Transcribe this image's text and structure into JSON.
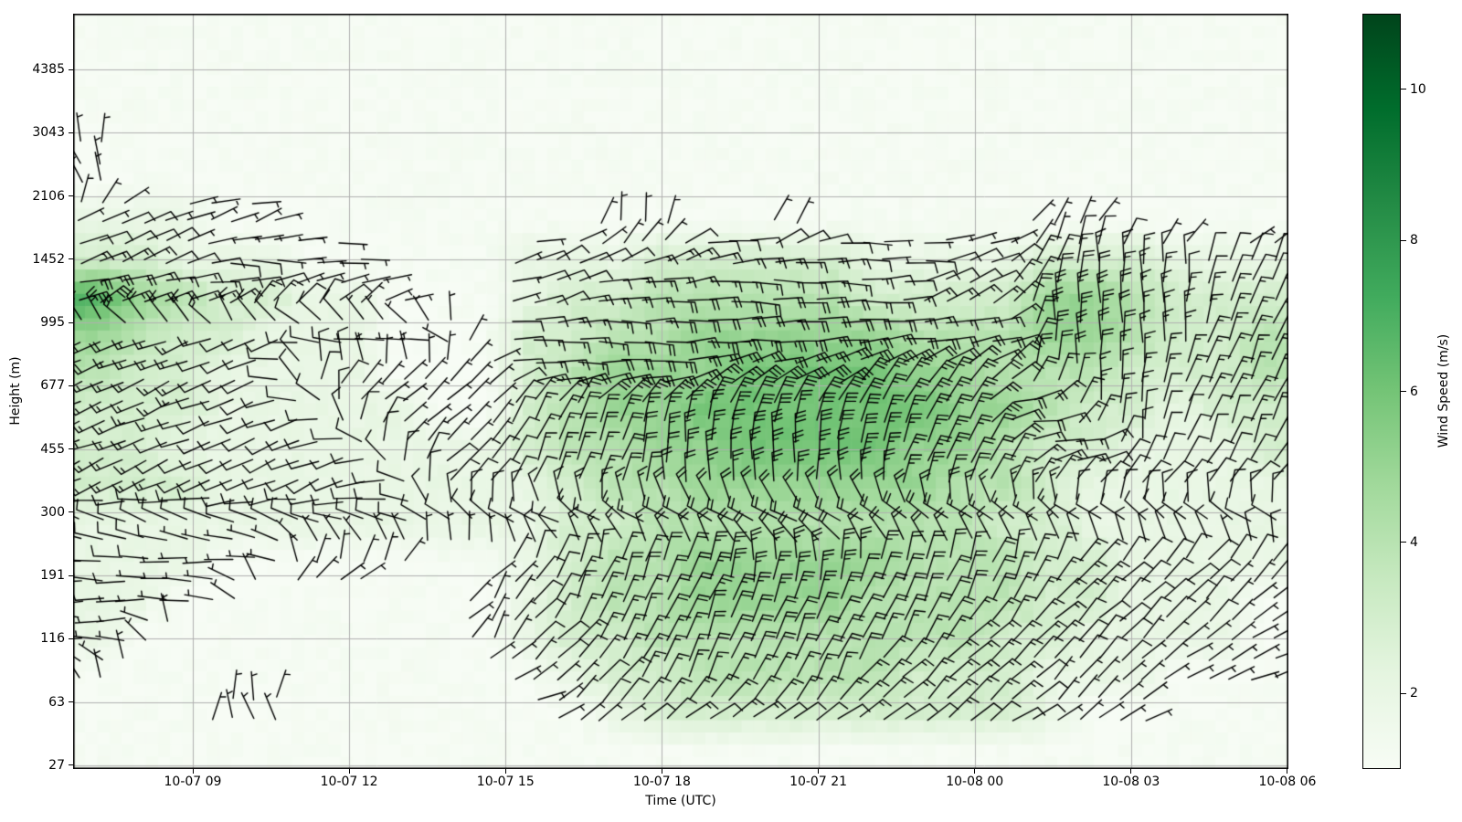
{
  "chart_data": {
    "type": "heatmap",
    "subtype": "time-height wind barbs over wind-speed color shading",
    "title": "",
    "x_axis": {
      "label": "Time (UTC)",
      "tick_labels": [
        "10-07 09",
        "10-07 12",
        "10-07 15",
        "10-07 18",
        "10-07 21",
        "10-08 00",
        "10-08 03",
        "10-08 06"
      ],
      "start_approx": "10-07 06:40",
      "end": "10-08 06:00",
      "grid": true
    },
    "y_axis": {
      "label": "Height (m)",
      "tick_labels": [
        "4385",
        "3043",
        "2106",
        "1452",
        "995",
        "677",
        "455",
        "300",
        "191",
        "116",
        "63",
        "27"
      ],
      "tick_values_m": [
        4385,
        3043,
        2106,
        1452,
        995,
        677,
        455,
        300,
        191,
        116,
        63,
        27
      ],
      "scale": "log-like, ticks evenly spaced top to bottom",
      "grid": true
    },
    "speed_units": "m/s",
    "wind_grid": {
      "cols": 28,
      "rows": 20,
      "row0": "top of plot (~6600 m), last row bottom (~25 m); col0 at left edge (~10-07 06:40), last col at right edge (10-08 06:00)",
      "speed_encoding": "one digit per cell = wind speed in m/s sampled from shading; 0 = no barbs / background (~1 m/s)",
      "speed": [
        "0000000000000000000000000000",
        "0000000000000000000000000000",
        "0000000000000000000000000000",
        "1000000000000000000000000000",
        "1000000000000000000000000000",
        "2221100000001100100000110000",
        "3322211000222333332222333222",
        "7543322100233444443333554333",
        "5433222110334455555444554334",
        "4332222111345556666554443334",
        "3332222211345566666655433233",
        "3322222222344556666554332223",
        "3332222222234455555544322222",
        "2222222222233444444443322222",
        "2221111100234455555444332222",
        "2211000001234455554444332221",
        "2100000001233444444443322221",
        "1000000000123344444333222111",
        "0001100000012333333333211000",
        "0000000000000000000000000000"
      ],
      "direction_encoding": "one hex digit per cell; digit x 22.5 deg = visual angle of barb staff (toward feathered end) CCW from east, screen-up = north; feathers drawn at staff angle minus 75 deg",
      "direction": [
        "0000000000000000000000000000",
        "0000000000000000000000000000",
        "0000000000000000000000000000",
        "5000000000000000000000000000",
        "5000000000000000000000000000",
        "1111100000004400400000330000",
        "1110000000111110000011344433",
        "0000111000110000000112444433",
        "9999999990000000000000444433",
        "9999922222000011112222444333",
        "9999992222333333333330044333",
        "9999999222333444443333004333",
        "9999999922333444444333322222",
        "7777777777777777777777777777",
        "8888833300333334443333322222",
        "8888000003233333333333222222",
        "8800000003223333333322222221",
        "6000000000222333332222222111",
        "0005700000022222222222222000",
        "0000000000000000000000000000"
      ]
    },
    "colorbar": {
      "label": "Wind Speed (m/s)",
      "tick_values": [
        2,
        4,
        6,
        8,
        10
      ],
      "vmin": 1,
      "vmax": 11,
      "colormap_name": "Greens",
      "colormap_stops": [
        [
          0.0,
          "#f7fcf5"
        ],
        [
          0.125,
          "#e5f5e0"
        ],
        [
          0.25,
          "#c7e9c0"
        ],
        [
          0.375,
          "#a1d99b"
        ],
        [
          0.5,
          "#74c476"
        ],
        [
          0.625,
          "#41ab5d"
        ],
        [
          0.75,
          "#238b45"
        ],
        [
          0.875,
          "#006d2c"
        ],
        [
          1.0,
          "#00441b"
        ]
      ]
    },
    "style": {
      "grid_color": "#b0b0b0",
      "barb_color": "#000000",
      "frame_color": "#000000",
      "figure_background": "#ffffff"
    }
  }
}
